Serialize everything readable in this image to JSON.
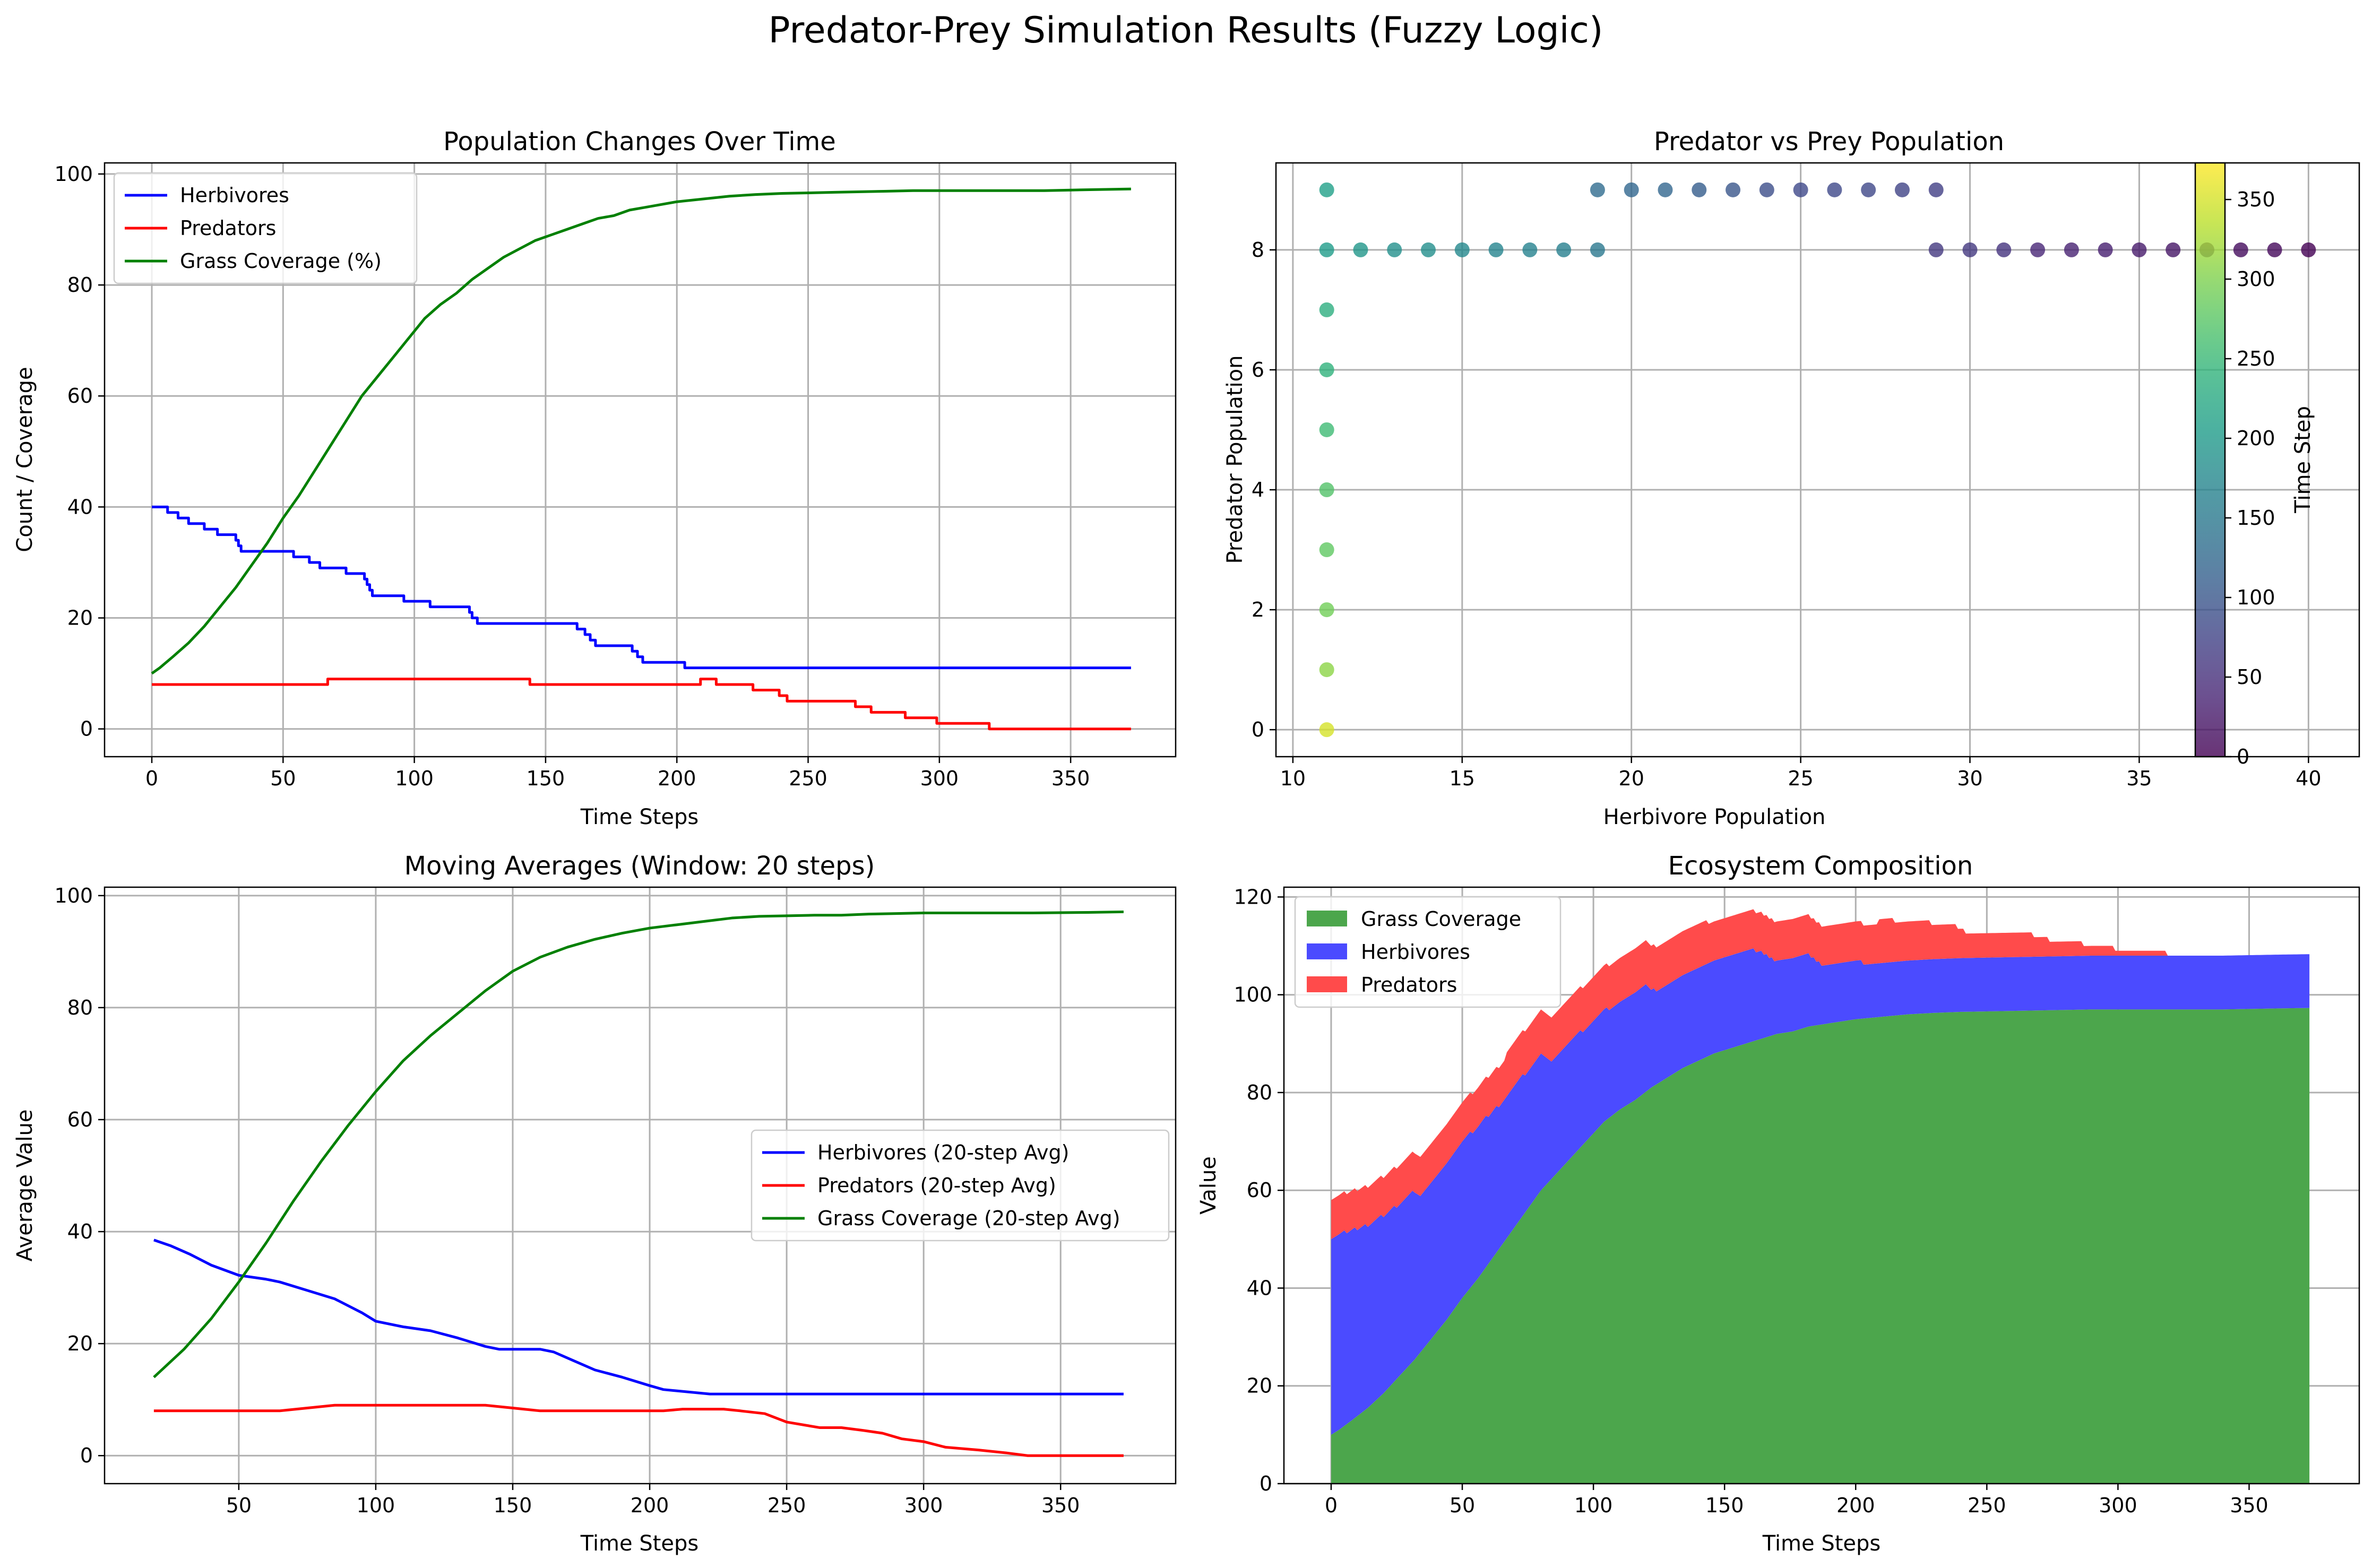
{
  "suptitle": "Predator-Prey Simulation Results (Fuzzy Logic)",
  "chart_data": [
    {
      "id": "p1",
      "type": "line",
      "title": "Population Changes Over Time",
      "xlabel": "Time Steps",
      "ylabel": "Count / Coverage",
      "xlim": [
        -18,
        390
      ],
      "ylim": [
        -5,
        102
      ],
      "xticks": [
        0,
        50,
        100,
        150,
        200,
        250,
        300,
        350
      ],
      "yticks": [
        0,
        20,
        40,
        60,
        80,
        100
      ],
      "grid": true,
      "legend": "upper-left",
      "series": [
        {
          "name": "Herbivores",
          "color": "#0000ff",
          "step": true,
          "points": [
            [
              0,
              40
            ],
            [
              5,
              40
            ],
            [
              6,
              39
            ],
            [
              9,
              39
            ],
            [
              10,
              38
            ],
            [
              13,
              38
            ],
            [
              14,
              37
            ],
            [
              19,
              37
            ],
            [
              20,
              36
            ],
            [
              24,
              36
            ],
            [
              25,
              35
            ],
            [
              31,
              35
            ],
            [
              32,
              34
            ],
            [
              33,
              33
            ],
            [
              34,
              32
            ],
            [
              53,
              32
            ],
            [
              54,
              31
            ],
            [
              59,
              31
            ],
            [
              60,
              30
            ],
            [
              63,
              30
            ],
            [
              64,
              29
            ],
            [
              73,
              29
            ],
            [
              74,
              28
            ],
            [
              80,
              28
            ],
            [
              81,
              27
            ],
            [
              82,
              26
            ],
            [
              83,
              25
            ],
            [
              84,
              24
            ],
            [
              95,
              24
            ],
            [
              96,
              23
            ],
            [
              105,
              23
            ],
            [
              106,
              22
            ],
            [
              120,
              22
            ],
            [
              121,
              21
            ],
            [
              122,
              20
            ],
            [
              124,
              19
            ],
            [
              160,
              19
            ],
            [
              162,
              18
            ],
            [
              165,
              17
            ],
            [
              167,
              16
            ],
            [
              169,
              15
            ],
            [
              182,
              15
            ],
            [
              183,
              14
            ],
            [
              185,
              13
            ],
            [
              187,
              12
            ],
            [
              202,
              12
            ],
            [
              203,
              11
            ],
            [
              373,
              11
            ]
          ]
        },
        {
          "name": "Predators",
          "color": "#ff0000",
          "step": true,
          "points": [
            [
              0,
              8
            ],
            [
              66,
              8
            ],
            [
              67,
              9
            ],
            [
              143,
              9
            ],
            [
              144,
              8
            ],
            [
              208,
              8
            ],
            [
              209,
              9
            ],
            [
              214,
              9
            ],
            [
              215,
              8
            ],
            [
              228,
              8
            ],
            [
              229,
              7
            ],
            [
              238,
              7
            ],
            [
              239,
              6
            ],
            [
              241,
              6
            ],
            [
              242,
              5
            ],
            [
              267,
              5
            ],
            [
              268,
              4
            ],
            [
              273,
              4
            ],
            [
              274,
              3
            ],
            [
              286,
              3
            ],
            [
              287,
              2
            ],
            [
              298,
              2
            ],
            [
              299,
              1
            ],
            [
              318,
              1
            ],
            [
              319,
              0
            ],
            [
              373,
              0
            ]
          ]
        },
        {
          "name": "Grass Coverage (%)",
          "color": "#008000",
          "step": false,
          "points": [
            [
              0,
              10
            ],
            [
              3,
              11
            ],
            [
              8,
              13
            ],
            [
              14,
              15.5
            ],
            [
              20,
              18.5
            ],
            [
              26,
              22
            ],
            [
              32,
              25.5
            ],
            [
              38,
              29.5
            ],
            [
              44,
              33.5
            ],
            [
              50,
              38
            ],
            [
              56,
              42
            ],
            [
              62,
              46.5
            ],
            [
              68,
              51
            ],
            [
              74,
              55.5
            ],
            [
              80,
              60
            ],
            [
              86,
              63.5
            ],
            [
              92,
              67
            ],
            [
              98,
              70.5
            ],
            [
              104,
              74
            ],
            [
              110,
              76.5
            ],
            [
              116,
              78.5
            ],
            [
              122,
              81
            ],
            [
              128,
              83
            ],
            [
              134,
              85
            ],
            [
              140,
              86.5
            ],
            [
              146,
              88
            ],
            [
              152,
              89
            ],
            [
              158,
              90
            ],
            [
              164,
              91
            ],
            [
              170,
              92
            ],
            [
              176,
              92.5
            ],
            [
              182,
              93.5
            ],
            [
              188,
              94
            ],
            [
              194,
              94.5
            ],
            [
              200,
              95
            ],
            [
              210,
              95.5
            ],
            [
              220,
              96
            ],
            [
              230,
              96.3
            ],
            [
              240,
              96.5
            ],
            [
              250,
              96.6
            ],
            [
              260,
              96.7
            ],
            [
              270,
              96.8
            ],
            [
              280,
              96.9
            ],
            [
              290,
              97
            ],
            [
              300,
              97
            ],
            [
              310,
              97
            ],
            [
              320,
              97
            ],
            [
              330,
              97
            ],
            [
              340,
              97
            ],
            [
              350,
              97.1
            ],
            [
              360,
              97.2
            ],
            [
              373,
              97.3
            ]
          ]
        }
      ]
    },
    {
      "id": "p2",
      "type": "scatter",
      "title": "Predator vs Prey Population",
      "xlabel": "Herbivore Population",
      "ylabel": "Predator Population",
      "xlim": [
        9.5,
        41.5
      ],
      "ylim": [
        -0.45,
        9.45
      ],
      "xticks": [
        10,
        15,
        20,
        25,
        30,
        35,
        40
      ],
      "yticks": [
        0,
        2,
        4,
        6,
        8
      ],
      "grid": true,
      "colorbar": {
        "label": "Time Step",
        "min": 0,
        "max": 373,
        "ticks": [
          0,
          50,
          100,
          150,
          200,
          250,
          300,
          350
        ]
      },
      "points": [
        [
          40,
          8,
          0
        ],
        [
          39,
          8,
          8
        ],
        [
          38,
          8,
          12
        ],
        [
          37,
          8,
          16
        ],
        [
          36,
          8,
          22
        ],
        [
          35,
          8,
          28
        ],
        [
          34,
          8,
          32
        ],
        [
          33,
          8,
          35
        ],
        [
          32,
          8,
          40
        ],
        [
          31,
          8,
          55
        ],
        [
          30,
          8,
          61
        ],
        [
          29,
          8,
          62
        ],
        [
          29,
          9,
          70
        ],
        [
          28,
          9,
          75
        ],
        [
          27,
          9,
          81
        ],
        [
          26,
          9,
          82
        ],
        [
          25,
          9,
          83
        ],
        [
          24,
          9,
          90
        ],
        [
          23,
          9,
          100
        ],
        [
          22,
          9,
          110
        ],
        [
          21,
          9,
          122
        ],
        [
          20,
          9,
          123
        ],
        [
          19,
          9,
          130
        ],
        [
          19,
          8,
          150
        ],
        [
          18,
          8,
          163
        ],
        [
          17,
          8,
          166
        ],
        [
          16,
          8,
          168
        ],
        [
          15,
          8,
          175
        ],
        [
          14,
          8,
          184
        ],
        [
          13,
          8,
          186
        ],
        [
          12,
          8,
          195
        ],
        [
          11,
          8,
          205
        ],
        [
          11,
          9,
          211
        ],
        [
          11,
          7,
          233
        ],
        [
          11,
          6,
          240
        ],
        [
          11,
          5,
          255
        ],
        [
          11,
          4,
          270
        ],
        [
          11,
          3,
          280
        ],
        [
          11,
          2,
          292
        ],
        [
          11,
          1,
          308
        ],
        [
          11,
          0,
          350
        ]
      ]
    },
    {
      "id": "p3",
      "type": "line",
      "title": "Moving Averages (Window: 20 steps)",
      "xlabel": "Time Steps",
      "ylabel": "Average Value",
      "xlim": [
        1,
        392
      ],
      "ylim": [
        -5,
        101.5
      ],
      "xticks": [
        50,
        100,
        150,
        200,
        250,
        300,
        350
      ],
      "yticks": [
        0,
        20,
        40,
        60,
        80,
        100
      ],
      "grid": true,
      "legend": "center-right",
      "series": [
        {
          "name": "Herbivores (20-step Avg)",
          "color": "#0000ff",
          "step": false,
          "points": [
            [
              19,
              38.5
            ],
            [
              25,
              37.5
            ],
            [
              32,
              36
            ],
            [
              40,
              34
            ],
            [
              50,
              32.2
            ],
            [
              60,
              31.5
            ],
            [
              65,
              31
            ],
            [
              75,
              29.5
            ],
            [
              85,
              28
            ],
            [
              95,
              25.5
            ],
            [
              100,
              24
            ],
            [
              110,
              23
            ],
            [
              120,
              22.3
            ],
            [
              130,
              21
            ],
            [
              140,
              19.5
            ],
            [
              145,
              19
            ],
            [
              160,
              19
            ],
            [
              165,
              18.5
            ],
            [
              172,
              17
            ],
            [
              180,
              15.3
            ],
            [
              190,
              14
            ],
            [
              200,
              12.5
            ],
            [
              205,
              11.8
            ],
            [
              222,
              11
            ],
            [
              373,
              11
            ]
          ]
        },
        {
          "name": "Predators (20-step Avg)",
          "color": "#ff0000",
          "step": false,
          "points": [
            [
              19,
              8
            ],
            [
              65,
              8
            ],
            [
              75,
              8.5
            ],
            [
              85,
              9
            ],
            [
              140,
              9
            ],
            [
              150,
              8.5
            ],
            [
              160,
              8
            ],
            [
              205,
              8
            ],
            [
              212,
              8.3
            ],
            [
              227,
              8.3
            ],
            [
              233,
              8
            ],
            [
              242,
              7.5
            ],
            [
              250,
              6
            ],
            [
              262,
              5
            ],
            [
              270,
              5
            ],
            [
              278,
              4.5
            ],
            [
              285,
              4
            ],
            [
              292,
              3
            ],
            [
              300,
              2.5
            ],
            [
              308,
              1.5
            ],
            [
              320,
              1
            ],
            [
              330,
              0.5
            ],
            [
              338,
              0
            ],
            [
              373,
              0
            ]
          ]
        },
        {
          "name": "Grass Coverage (20-step Avg)",
          "color": "#008000",
          "step": false,
          "points": [
            [
              19,
              14
            ],
            [
              30,
              19
            ],
            [
              40,
              24.5
            ],
            [
              50,
              31
            ],
            [
              60,
              38
            ],
            [
              70,
              45.5
            ],
            [
              80,
              52.5
            ],
            [
              90,
              59
            ],
            [
              100,
              65
            ],
            [
              110,
              70.5
            ],
            [
              120,
              75
            ],
            [
              130,
              79
            ],
            [
              140,
              83
            ],
            [
              150,
              86.5
            ],
            [
              160,
              89
            ],
            [
              170,
              90.8
            ],
            [
              180,
              92.2
            ],
            [
              190,
              93.3
            ],
            [
              200,
              94.2
            ],
            [
              210,
              94.8
            ],
            [
              220,
              95.4
            ],
            [
              230,
              96
            ],
            [
              240,
              96.3
            ],
            [
              250,
              96.4
            ],
            [
              260,
              96.5
            ],
            [
              270,
              96.5
            ],
            [
              280,
              96.7
            ],
            [
              290,
              96.8
            ],
            [
              300,
              96.9
            ],
            [
              320,
              96.9
            ],
            [
              340,
              96.9
            ],
            [
              360,
              97
            ],
            [
              373,
              97.1
            ]
          ]
        }
      ]
    },
    {
      "id": "p4",
      "type": "area",
      "title": "Ecosystem Composition",
      "xlabel": "Time Steps",
      "ylabel": "Value",
      "xlim": [
        -18,
        392
      ],
      "ylim": [
        0,
        122
      ],
      "xticks": [
        0,
        50,
        100,
        150,
        200,
        250,
        300,
        350
      ],
      "yticks": [
        0,
        20,
        40,
        60,
        80,
        100,
        120
      ],
      "grid": true,
      "legend": "upper-left",
      "stacked": true,
      "series": [
        {
          "name": "Grass Coverage",
          "color": "#4ca64c",
          "alpha": 1
        },
        {
          "name": "Herbivores",
          "color": "#4b4bff",
          "alpha": 1
        },
        {
          "name": "Predators",
          "color": "#ff4b4b",
          "alpha": 1
        }
      ]
    }
  ]
}
